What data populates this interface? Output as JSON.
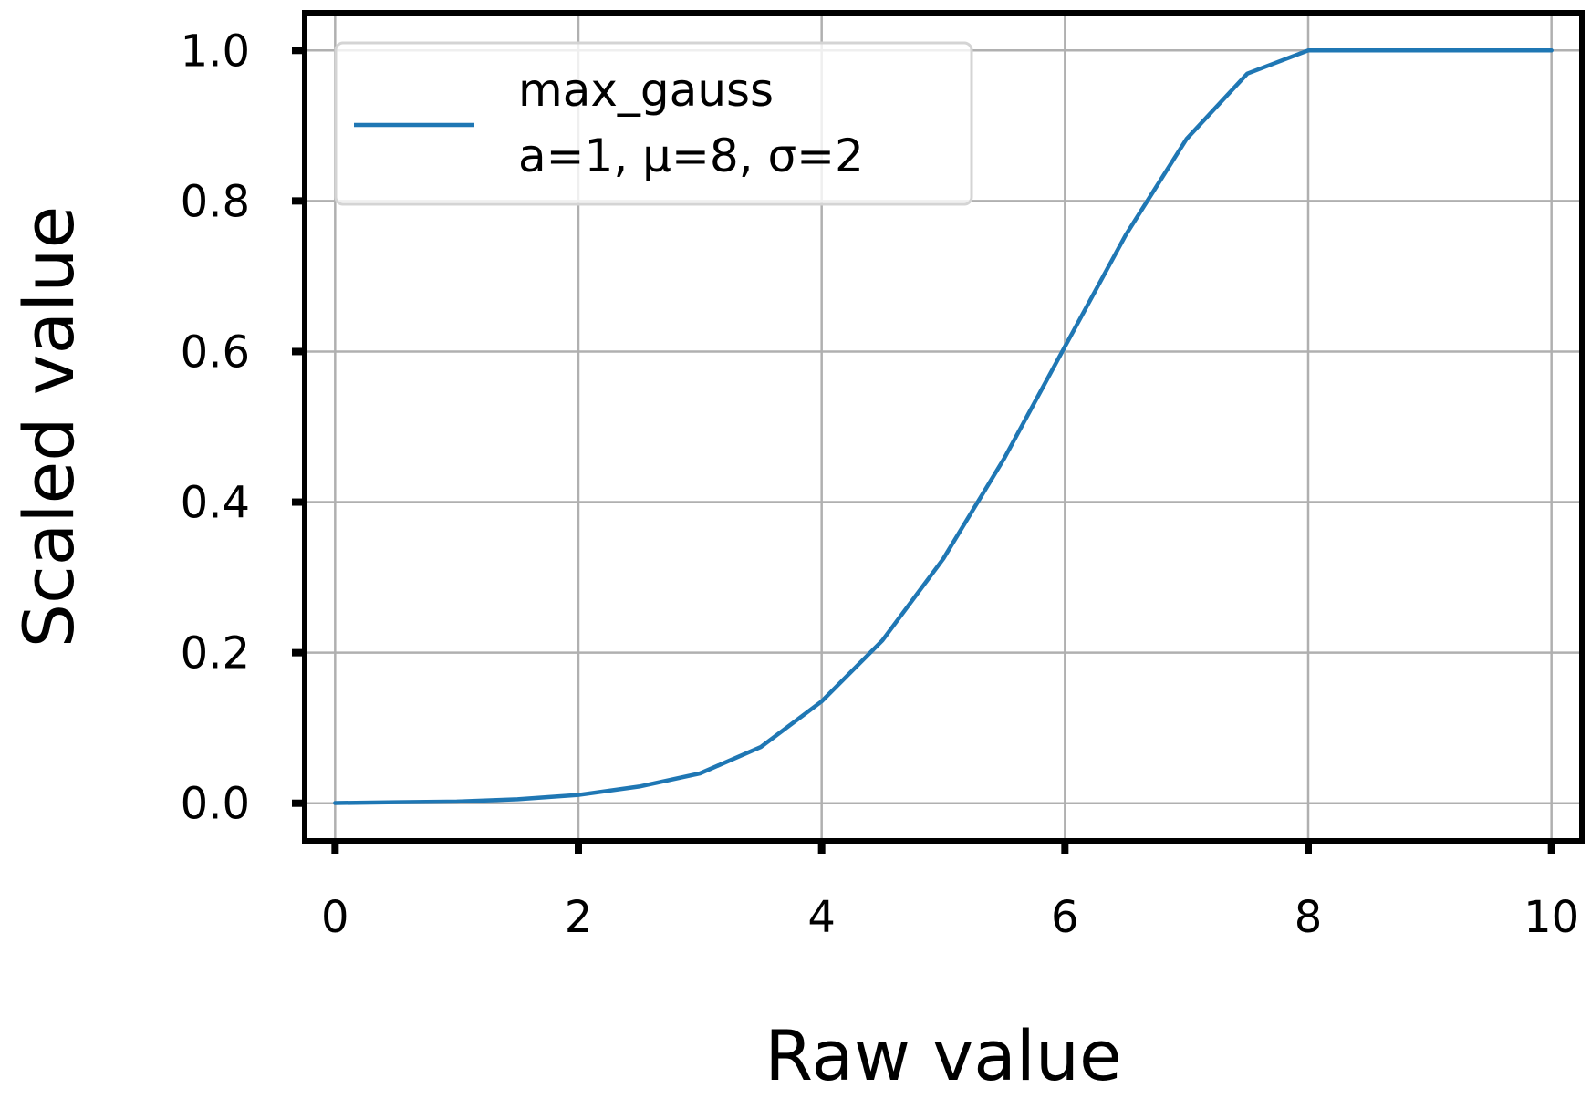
{
  "chart_data": {
    "type": "line",
    "xlabel": "Raw value",
    "ylabel": "Scaled value",
    "xlim": [
      -0.25,
      10.25
    ],
    "ylim": [
      -0.05,
      1.05
    ],
    "xticks": [
      "0",
      "2",
      "4",
      "6",
      "8",
      "10"
    ],
    "xtick_values": [
      0,
      2,
      4,
      6,
      8,
      10
    ],
    "yticks": [
      "0.0",
      "0.2",
      "0.4",
      "0.6",
      "0.8",
      "1.0"
    ],
    "ytick_values": [
      0,
      0.2,
      0.4,
      0.6,
      0.8,
      1.0
    ],
    "grid": true,
    "legend_position": "top-left",
    "series": [
      {
        "name": "max_gauss",
        "legend_lines": [
          "max_gauss",
          "a=1, μ=8, σ=2"
        ],
        "color": "#1f77b4",
        "x": [
          0,
          0.5,
          1,
          1.5,
          2,
          2.5,
          3,
          3.5,
          4,
          4.5,
          5,
          5.5,
          6,
          6.5,
          7,
          7.5,
          8,
          8.5,
          9,
          9.5,
          10
        ],
        "y": [
          0.0003,
          0.0014,
          0.0022,
          0.0052,
          0.0111,
          0.0222,
          0.0396,
          0.0747,
          0.1353,
          0.2163,
          0.3247,
          0.4578,
          0.6065,
          0.7548,
          0.8825,
          0.9692,
          1.0,
          1.0,
          1.0,
          1.0,
          1.0
        ]
      }
    ]
  }
}
